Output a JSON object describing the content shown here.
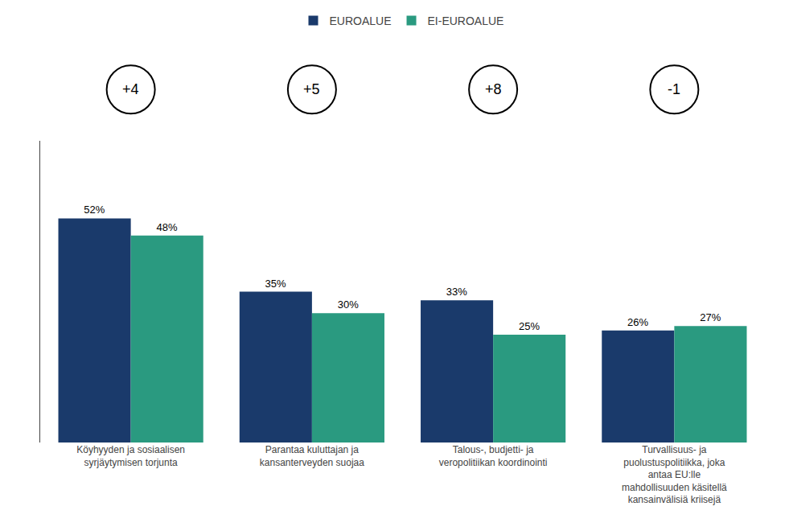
{
  "chart_data": {
    "type": "bar",
    "categories": [
      "Köyhyyden ja sosiaalisen\nsyrjäytymisen torjunta",
      "Parantaa kuluttajan ja\nkansanterveyden suojaa",
      "Talous-, budjetti- ja\nveropolitiikan koordinointi",
      "Turvallisuus- ja\npuolustuspolitiikka, joka\nantaa EU:lle\nmahdollisuuden käsitellä\nkansainvälisiä kriisejä"
    ],
    "series": [
      {
        "name": "EUROALUE",
        "color": "#1a3a6b",
        "values": [
          52,
          35,
          33,
          26
        ],
        "value_labels": [
          "52%",
          "35%",
          "33%",
          "26%"
        ]
      },
      {
        "name": "EI-EUROALUE",
        "color": "#2a9a80",
        "values": [
          48,
          30,
          25,
          27
        ],
        "value_labels": [
          "48%",
          "30%",
          "25%",
          "27%"
        ]
      }
    ],
    "annotations": [
      "+4",
      "+5",
      "+8",
      "-1"
    ],
    "ylim": [
      0,
      70
    ],
    "data_labels": true,
    "tick_labels": "x",
    "legend": "top",
    "grid": false
  }
}
